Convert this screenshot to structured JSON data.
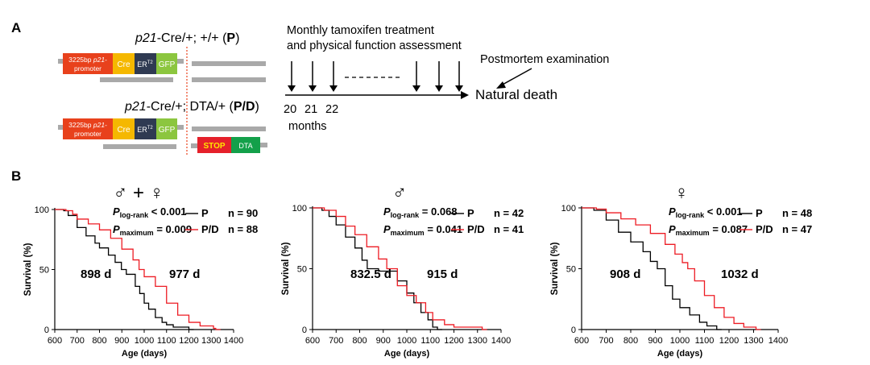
{
  "panels": {
    "a": "A",
    "b": "B"
  },
  "colors": {
    "p_line": "#000000",
    "pd_line": "#ed1c24",
    "promoter": "#e8411c",
    "cre": "#f5b800",
    "ert2": "#2f3a52",
    "gfp": "#8cc63f",
    "stop": "#e5202a",
    "stop_text": "#ffe600",
    "dta": "#13a04a",
    "gray": "#a9a9a9",
    "dashed_red": "#e8411c"
  },
  "genotypes": {
    "p": {
      "prefix": "p21",
      "suffix": "-Cre/+; +/+  (",
      "tag": "P",
      "close": ")"
    },
    "pd": {
      "prefix": "p21",
      "suffix": "-Cre/+; DTA/+  (",
      "tag": "P/D",
      "close": ")"
    }
  },
  "construct": {
    "promoter_line1_a": "3225bp ",
    "promoter_line1_b": "p21-",
    "promoter_line2": "promoter",
    "cre": "Cre",
    "ert2": "ER",
    "ert2_sup": "T2",
    "gfp": "GFP",
    "stop": "STOP",
    "dta": "DTA"
  },
  "timeline": {
    "treatment_line1": "Monthly tamoxifen treatment",
    "treatment_line2": "and physical function assessment",
    "postmortem": "Postmortem examination",
    "endpoint": "Natural death",
    "ticks": [
      "20",
      "21",
      "22"
    ],
    "unit": "months"
  },
  "chart_data": [
    {
      "type": "line",
      "subtype": "kaplan-meier",
      "sex_symbols": "♂ + ♀",
      "xlabel": "Age (days)",
      "ylabel": "Survival (%)",
      "xlim": [
        600,
        1400
      ],
      "ylim": [
        0,
        100
      ],
      "xticks": [
        600,
        700,
        800,
        900,
        1000,
        1100,
        1200,
        1300,
        1400
      ],
      "yticks": [
        0,
        50,
        100
      ],
      "stats": [
        {
          "label": "P",
          "sub": "log-rank",
          "value": "< 0.001"
        },
        {
          "label": "P",
          "sub": "maximum",
          "value": "= 0.009"
        }
      ],
      "median_p": "898 d",
      "median_pd": "977 d",
      "series": [
        {
          "name": "P",
          "n": "n = 90",
          "x": [
            600,
            640,
            660,
            700,
            740,
            780,
            800,
            840,
            870,
            898,
            920,
            960,
            980,
            1000,
            1020,
            1050,
            1080,
            1100,
            1130,
            1200
          ],
          "y": [
            100,
            99,
            95,
            85,
            78,
            72,
            68,
            62,
            56,
            50,
            46,
            36,
            30,
            22,
            17,
            10,
            6,
            4,
            2,
            0
          ]
        },
        {
          "name": "P/D",
          "n": "n = 88",
          "x": [
            600,
            650,
            680,
            700,
            750,
            800,
            850,
            900,
            950,
            977,
            1000,
            1050,
            1100,
            1150,
            1200,
            1250,
            1310,
            1320
          ],
          "y": [
            100,
            99,
            96,
            92,
            88,
            83,
            76,
            67,
            58,
            50,
            44,
            36,
            22,
            12,
            6,
            3,
            1,
            0
          ]
        }
      ]
    },
    {
      "type": "line",
      "subtype": "kaplan-meier",
      "sex_symbols": "♂",
      "xlabel": "Age (days)",
      "ylabel": "Survival (%)",
      "xlim": [
        600,
        1400
      ],
      "ylim": [
        0,
        100
      ],
      "xticks": [
        600,
        700,
        800,
        900,
        1000,
        1100,
        1200,
        1300,
        1400
      ],
      "yticks": [
        0,
        50,
        100
      ],
      "stats": [
        {
          "label": "P",
          "sub": "log-rank",
          "value": "= 0.068"
        },
        {
          "label": "P",
          "sub": "maximum",
          "value": "= 0.041"
        }
      ],
      "median_p": "832.5 d",
      "median_pd": "915 d",
      "series": [
        {
          "name": "P",
          "n": "n = 42",
          "x": [
            600,
            640,
            670,
            700,
            740,
            780,
            810,
            832,
            880,
            930,
            960,
            1000,
            1030,
            1060,
            1090,
            1110,
            1130
          ],
          "y": [
            100,
            98,
            93,
            86,
            76,
            67,
            57,
            50,
            48,
            48,
            40,
            30,
            22,
            14,
            8,
            2,
            0
          ]
        },
        {
          "name": "P/D",
          "n": "n = 41",
          "x": [
            600,
            650,
            700,
            740,
            780,
            830,
            880,
            915,
            960,
            1000,
            1040,
            1080,
            1110,
            1160,
            1200,
            1320
          ],
          "y": [
            100,
            98,
            93,
            85,
            78,
            68,
            58,
            50,
            36,
            28,
            22,
            14,
            8,
            4,
            2,
            0
          ]
        }
      ]
    },
    {
      "type": "line",
      "subtype": "kaplan-meier",
      "sex_symbols": "♀",
      "xlabel": "Age (days)",
      "ylabel": "Survival (%)",
      "xlim": [
        600,
        1400
      ],
      "ylim": [
        0,
        100
      ],
      "xticks": [
        600,
        700,
        800,
        900,
        1000,
        1100,
        1200,
        1300,
        1400
      ],
      "yticks": [
        0,
        50,
        100
      ],
      "stats": [
        {
          "label": "P",
          "sub": "log-rank",
          "value": "< 0.001"
        },
        {
          "label": "P",
          "sub": "maximum",
          "value": "= 0.087"
        }
      ],
      "median_p": "908 d",
      "median_pd": "1032 d",
      "series": [
        {
          "name": "P",
          "n": "n = 48",
          "x": [
            600,
            650,
            700,
            750,
            800,
            850,
            880,
            908,
            940,
            970,
            1000,
            1040,
            1080,
            1110,
            1150
          ],
          "y": [
            100,
            98,
            90,
            80,
            72,
            64,
            56,
            50,
            36,
            25,
            18,
            12,
            6,
            3,
            0
          ]
        },
        {
          "name": "P/D",
          "n": "n = 47",
          "x": [
            600,
            660,
            700,
            760,
            820,
            880,
            940,
            980,
            1010,
            1032,
            1060,
            1100,
            1140,
            1180,
            1220,
            1260,
            1310
          ],
          "y": [
            100,
            99,
            96,
            91,
            86,
            79,
            70,
            62,
            55,
            50,
            40,
            28,
            18,
            10,
            5,
            2,
            0
          ]
        }
      ]
    }
  ]
}
